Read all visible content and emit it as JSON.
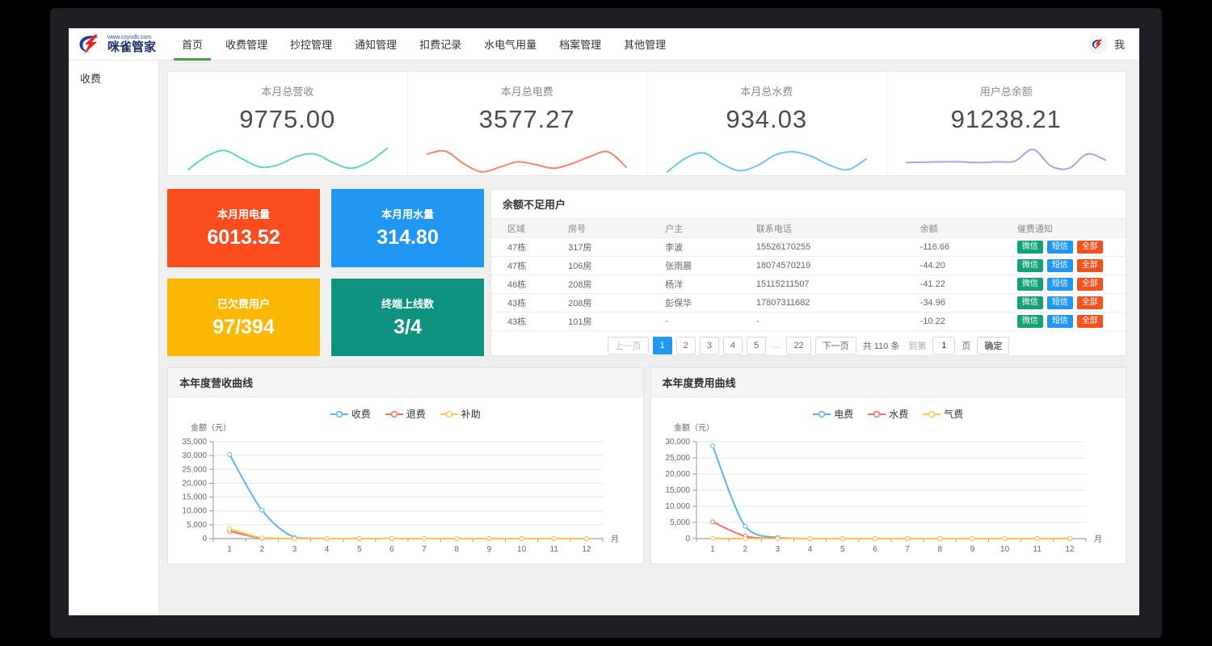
{
  "nav": {
    "logo": {
      "url_text": "www.csyndb.com",
      "brand": "咪雀管家"
    },
    "items": [
      "首页",
      "收费管理",
      "抄控管理",
      "通知管理",
      "扣费记录",
      "水电气用量",
      "档案管理",
      "其他管理"
    ],
    "active_index": 0,
    "user_label": "我"
  },
  "sidebar": {
    "items": [
      {
        "label": "收费"
      }
    ]
  },
  "stat_cards": [
    {
      "label": "本月总营收",
      "value": "9775.00",
      "color": "#62d9a9",
      "spark": [
        18,
        55,
        72,
        48,
        25,
        32,
        55,
        62,
        38,
        22,
        40,
        78
      ]
    },
    {
      "label": "本月总电费",
      "value": "3577.27",
      "color": "#f0876d",
      "spark": [
        62,
        70,
        35,
        12,
        25,
        40,
        32,
        22,
        35,
        55,
        68,
        25
      ]
    },
    {
      "label": "本月总水费",
      "value": "934.03",
      "color": "#72c6ee",
      "spark": [
        12,
        50,
        65,
        35,
        15,
        30,
        60,
        68,
        55,
        30,
        18,
        48
      ]
    },
    {
      "label": "用户总余额",
      "value": "91238.21",
      "color": "#b3a0dc",
      "spark": [
        38,
        39,
        40,
        40,
        38,
        40,
        42,
        75,
        28,
        22,
        62,
        45
      ]
    }
  ],
  "tiles": [
    {
      "label": "本月用电量",
      "value": "6013.52",
      "color": "#f94d1d"
    },
    {
      "label": "本月用水量",
      "value": "314.80",
      "color": "#2196f3"
    },
    {
      "label": "已欠费用户",
      "value": "97/394",
      "color": "#fcb800"
    },
    {
      "label": "终端上线数",
      "value": "3/4",
      "color": "#0e9380"
    }
  ],
  "table": {
    "title": "余额不足用户",
    "columns": [
      "区域",
      "房号",
      "户主",
      "联系电话",
      "余额",
      "催费通知"
    ],
    "actions": [
      {
        "label": "微信",
        "color": "#13a177"
      },
      {
        "label": "短信",
        "color": "#2196f3"
      },
      {
        "label": "全部",
        "color": "#f4511e"
      }
    ],
    "rows": [
      {
        "area": "47栋",
        "room": "317房",
        "owner": "李波",
        "phone": "15526170255",
        "balance": "-116.66"
      },
      {
        "area": "47栋",
        "room": "106房",
        "owner": "张雨晨",
        "phone": "18074570219",
        "balance": "-44.20"
      },
      {
        "area": "46栋",
        "room": "208房",
        "owner": "杨洋",
        "phone": "15115211507",
        "balance": "-41.22"
      },
      {
        "area": "43栋",
        "room": "208房",
        "owner": "彭保华",
        "phone": "17807311682",
        "balance": "-34.96"
      },
      {
        "area": "43栋",
        "room": "101房",
        "owner": "-",
        "phone": "-",
        "balance": "-10.22"
      }
    ],
    "pagination": {
      "prev": "上一页",
      "pages": [
        "1",
        "2",
        "3",
        "4",
        "5",
        "...",
        "22"
      ],
      "active": "1",
      "next": "下一页",
      "total": "共 110 条",
      "goto_prefix": "到第",
      "goto_value": "1",
      "goto_suffix": "页",
      "confirm": "确定"
    }
  },
  "chart_data": [
    {
      "type": "line",
      "title": "本年度营收曲线",
      "ylabel": "金额（元）",
      "xlabel": "月",
      "categories": [
        1,
        2,
        3,
        4,
        5,
        6,
        7,
        8,
        9,
        10,
        11,
        12
      ],
      "ylim": [
        0,
        35000
      ],
      "ytick_step": 5000,
      "grid": true,
      "legend_position": "top",
      "series": [
        {
          "name": "收费",
          "color": "#5fb2f0",
          "values": [
            30400,
            10300,
            400,
            0,
            0,
            0,
            0,
            0,
            0,
            0,
            0,
            0
          ]
        },
        {
          "name": "退费",
          "color": "#f0705f",
          "values": [
            2700,
            150,
            0,
            0,
            0,
            0,
            0,
            0,
            0,
            0,
            0,
            0
          ]
        },
        {
          "name": "补助",
          "color": "#fdc453",
          "values": [
            3600,
            250,
            0,
            0,
            0,
            0,
            0,
            0,
            0,
            0,
            0,
            0
          ]
        }
      ]
    },
    {
      "type": "line",
      "title": "本年度费用曲线",
      "ylabel": "金额（元）",
      "xlabel": "月",
      "categories": [
        1,
        2,
        3,
        4,
        5,
        6,
        7,
        8,
        9,
        10,
        11,
        12
      ],
      "ylim": [
        0,
        30000
      ],
      "ytick_step": 5000,
      "grid": true,
      "legend_position": "top",
      "series": [
        {
          "name": "电费",
          "color": "#5fb2f0",
          "values": [
            28700,
            3800,
            300,
            0,
            0,
            0,
            0,
            0,
            0,
            0,
            0,
            0
          ]
        },
        {
          "name": "水费",
          "color": "#f0705f",
          "values": [
            5200,
            750,
            50,
            0,
            0,
            0,
            0,
            0,
            0,
            0,
            0,
            0
          ]
        },
        {
          "name": "气费",
          "color": "#fdc453",
          "values": [
            0,
            0,
            0,
            0,
            0,
            0,
            0,
            0,
            0,
            0,
            0,
            0
          ]
        }
      ]
    }
  ]
}
